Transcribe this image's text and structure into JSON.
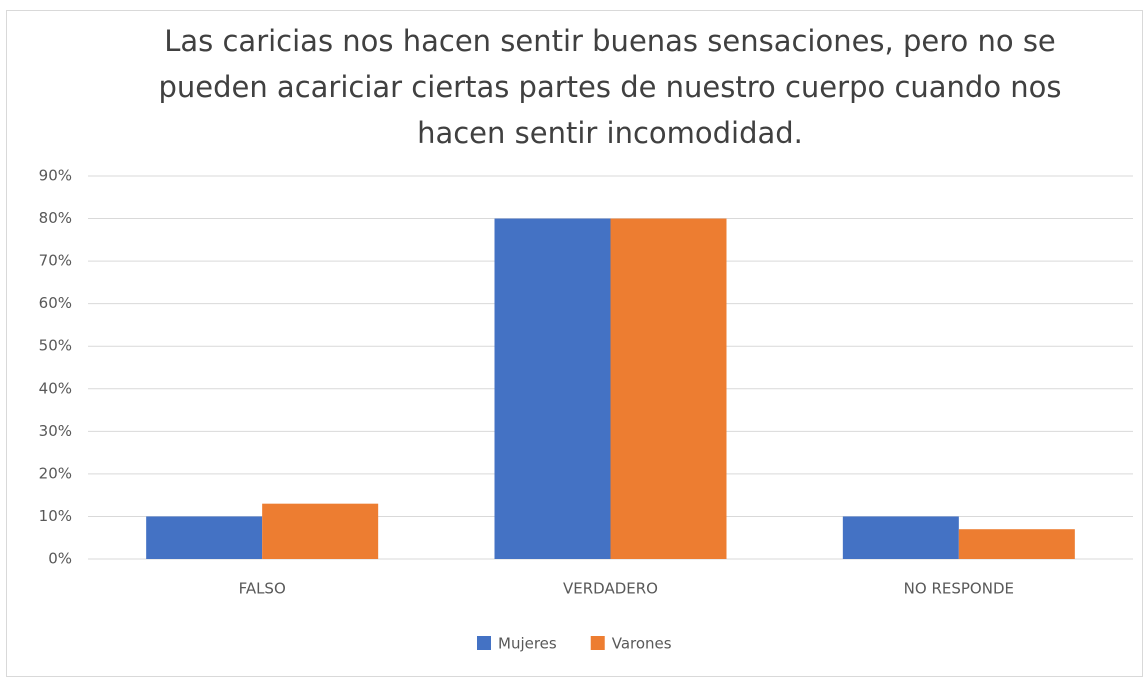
{
  "chart_data": {
    "type": "bar",
    "title": "Las caricias nos hacen sentir buenas sensaciones, pero no se pueden acariciar ciertas partes de nuestro cuerpo cuando nos hacen sentir incomodidad.",
    "categories": [
      "FALSO",
      "VERDADERO",
      "NO RESPONDE"
    ],
    "series": [
      {
        "name": "Mujeres",
        "color": "#4472c4",
        "values": [
          10,
          80,
          10
        ]
      },
      {
        "name": "Varones",
        "color": "#ed7d31",
        "values": [
          13,
          80,
          7
        ]
      }
    ],
    "ylim": [
      0,
      90
    ],
    "yticks": [
      {
        "value": 0,
        "label": "0%"
      },
      {
        "value": 10,
        "label": "10%"
      },
      {
        "value": 20,
        "label": "20%"
      },
      {
        "value": 30,
        "label": "30%"
      },
      {
        "value": 40,
        "label": "40%"
      },
      {
        "value": 50,
        "label": "50%"
      },
      {
        "value": 60,
        "label": "60%"
      },
      {
        "value": 70,
        "label": "70%"
      },
      {
        "value": 80,
        "label": "80%"
      },
      {
        "value": 90,
        "label": "90%"
      }
    ],
    "grid": true,
    "legend": "bottom"
  }
}
